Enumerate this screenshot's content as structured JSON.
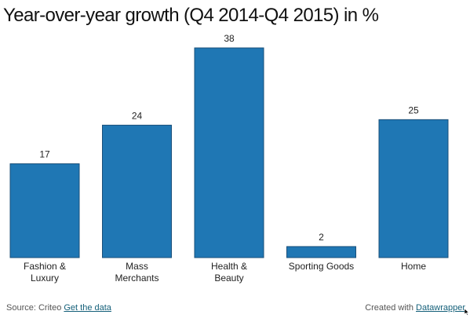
{
  "chart_data": {
    "type": "bar",
    "title": "Year-over-year growth (Q4 2014-Q4 2015) in %",
    "categories": [
      [
        "Fashion &",
        "Luxury"
      ],
      [
        "Mass",
        "Merchants"
      ],
      [
        "Health &",
        "Beauty"
      ],
      [
        "Sporting Goods"
      ],
      [
        "Home"
      ]
    ],
    "values": [
      17,
      24,
      38,
      2,
      25
    ],
    "value_labels": [
      "17",
      "24",
      "38",
      "2",
      "25"
    ],
    "xlabel": "",
    "ylabel": "",
    "ylim": [
      0,
      38
    ],
    "grid": false,
    "legend": "none",
    "bar_color": "#1f77b4"
  },
  "footer": {
    "source_prefix": "Source: Criteo",
    "get_data_link": "Get the data",
    "credit_prefix": "Created with",
    "credit_link": "Datawrapper"
  },
  "colors": {
    "link": "#15607a",
    "text": "#222222"
  }
}
